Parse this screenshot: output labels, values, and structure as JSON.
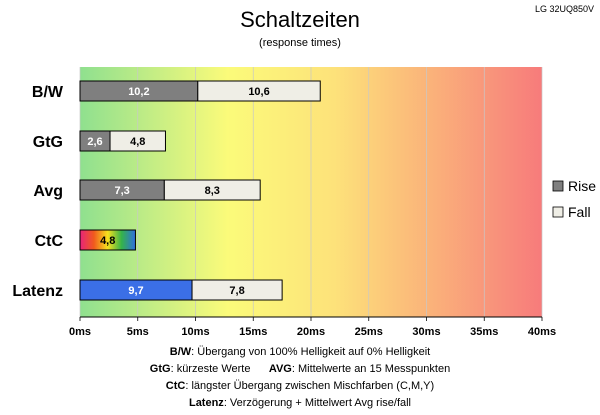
{
  "chart_data": {
    "type": "bar",
    "orientation": "horizontal",
    "stacked": true,
    "title": "Schaltzeiten",
    "subtitle": "(response times)",
    "corner_label": "LG 32UQ850V",
    "xlim": [
      0,
      40
    ],
    "x_ticks": [
      "0ms",
      "5ms",
      "10ms",
      "15ms",
      "20ms",
      "25ms",
      "30ms",
      "35ms",
      "40ms"
    ],
    "categories": [
      "B/W",
      "GtG",
      "Avg",
      "CtC",
      "Latenz"
    ],
    "series": [
      {
        "name": "Rise",
        "values": [
          10.2,
          2.6,
          7.3,
          4.8,
          9.7
        ],
        "labels": [
          "10,2",
          "2,6",
          "7,3",
          "4,8",
          "9,7"
        ]
      },
      {
        "name": "Fall",
        "values": [
          10.6,
          4.8,
          8.3,
          null,
          7.8
        ],
        "labels": [
          "10,6",
          "4,8",
          "8,3",
          "",
          "7,8"
        ]
      }
    ],
    "legend_position": "right",
    "colors": {
      "rise": "#7f7f7f",
      "fall": "#efeee6",
      "latenz_rise": "#3b6fe6",
      "background_start": "#8fe08f",
      "background_mid": "#fbfb7a",
      "background_end": "#f77b7b"
    }
  },
  "notes": [
    {
      "key": "B/W",
      "text": ":  Übergang von 100% Helligkeit auf 0% Helligkeit"
    },
    {
      "key": "GtG",
      "text": ": kürzeste  Werte",
      "key2": "AVG",
      "text2": ": Mittelwerte  an 15 Messpunkten"
    },
    {
      "key": "CtC",
      "text": ": längster Übergang  zwischen Mischfarben  (C,M,Y)"
    },
    {
      "key": "Latenz",
      "text": ": Verzögerung  + Mittelwert Avg rise/fall"
    }
  ]
}
